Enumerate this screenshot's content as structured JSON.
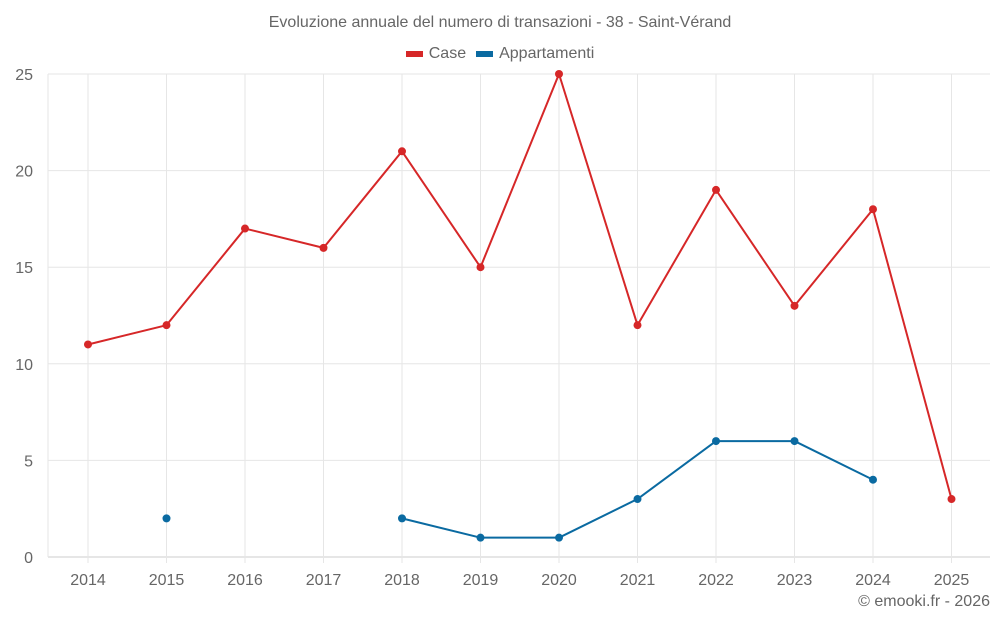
{
  "chart_data": {
    "type": "line",
    "title": "Evoluzione annuale del numero di transazioni - 38 - Saint-Vérand",
    "xlabel": "",
    "ylabel": "",
    "ylim": [
      0,
      25
    ],
    "yticks": [
      0,
      5,
      10,
      15,
      20,
      25
    ],
    "grid": true,
    "legend_position": "top",
    "categories": [
      "2014",
      "2015",
      "2016",
      "2017",
      "2018",
      "2019",
      "2020",
      "2021",
      "2022",
      "2023",
      "2024",
      "2025"
    ],
    "series": [
      {
        "name": "Case",
        "color": "#d62728",
        "values": [
          11,
          12,
          17,
          16,
          21,
          15,
          25,
          12,
          19,
          13,
          18,
          3
        ]
      },
      {
        "name": "Appartamenti",
        "color": "#0a6aa1",
        "values": [
          null,
          2,
          null,
          null,
          2,
          1,
          1,
          3,
          6,
          6,
          4,
          null
        ]
      }
    ]
  },
  "legend": {
    "items": [
      {
        "label": "Case",
        "color": "#d62728"
      },
      {
        "label": "Appartamenti",
        "color": "#0a6aa1"
      }
    ]
  },
  "credit": "© emooki.fr - 2026"
}
